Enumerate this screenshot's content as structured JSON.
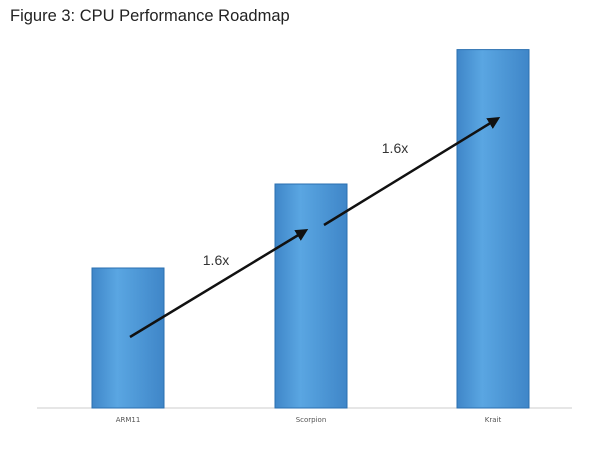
{
  "figure_title": "Figure 3: CPU Performance Roadmap",
  "colors": {
    "bar": "#4a96d6",
    "bar_edge": "#2a6fb0",
    "arrow": "#111111",
    "baseline": "#cccccc"
  },
  "chart_data": {
    "type": "bar",
    "title": "",
    "xlabel": "",
    "ylabel": "",
    "categories": [
      "ARM11",
      "Scorpion",
      "Krait"
    ],
    "values": [
      1.0,
      1.6,
      2.56
    ],
    "ylim": [
      0,
      2.7
    ],
    "grid": false,
    "legend": "none",
    "annotations": [
      {
        "label": "1.6x",
        "from": "ARM11",
        "to": "Scorpion"
      },
      {
        "label": "1.6x",
        "from": "Scorpion",
        "to": "Krait"
      }
    ]
  }
}
